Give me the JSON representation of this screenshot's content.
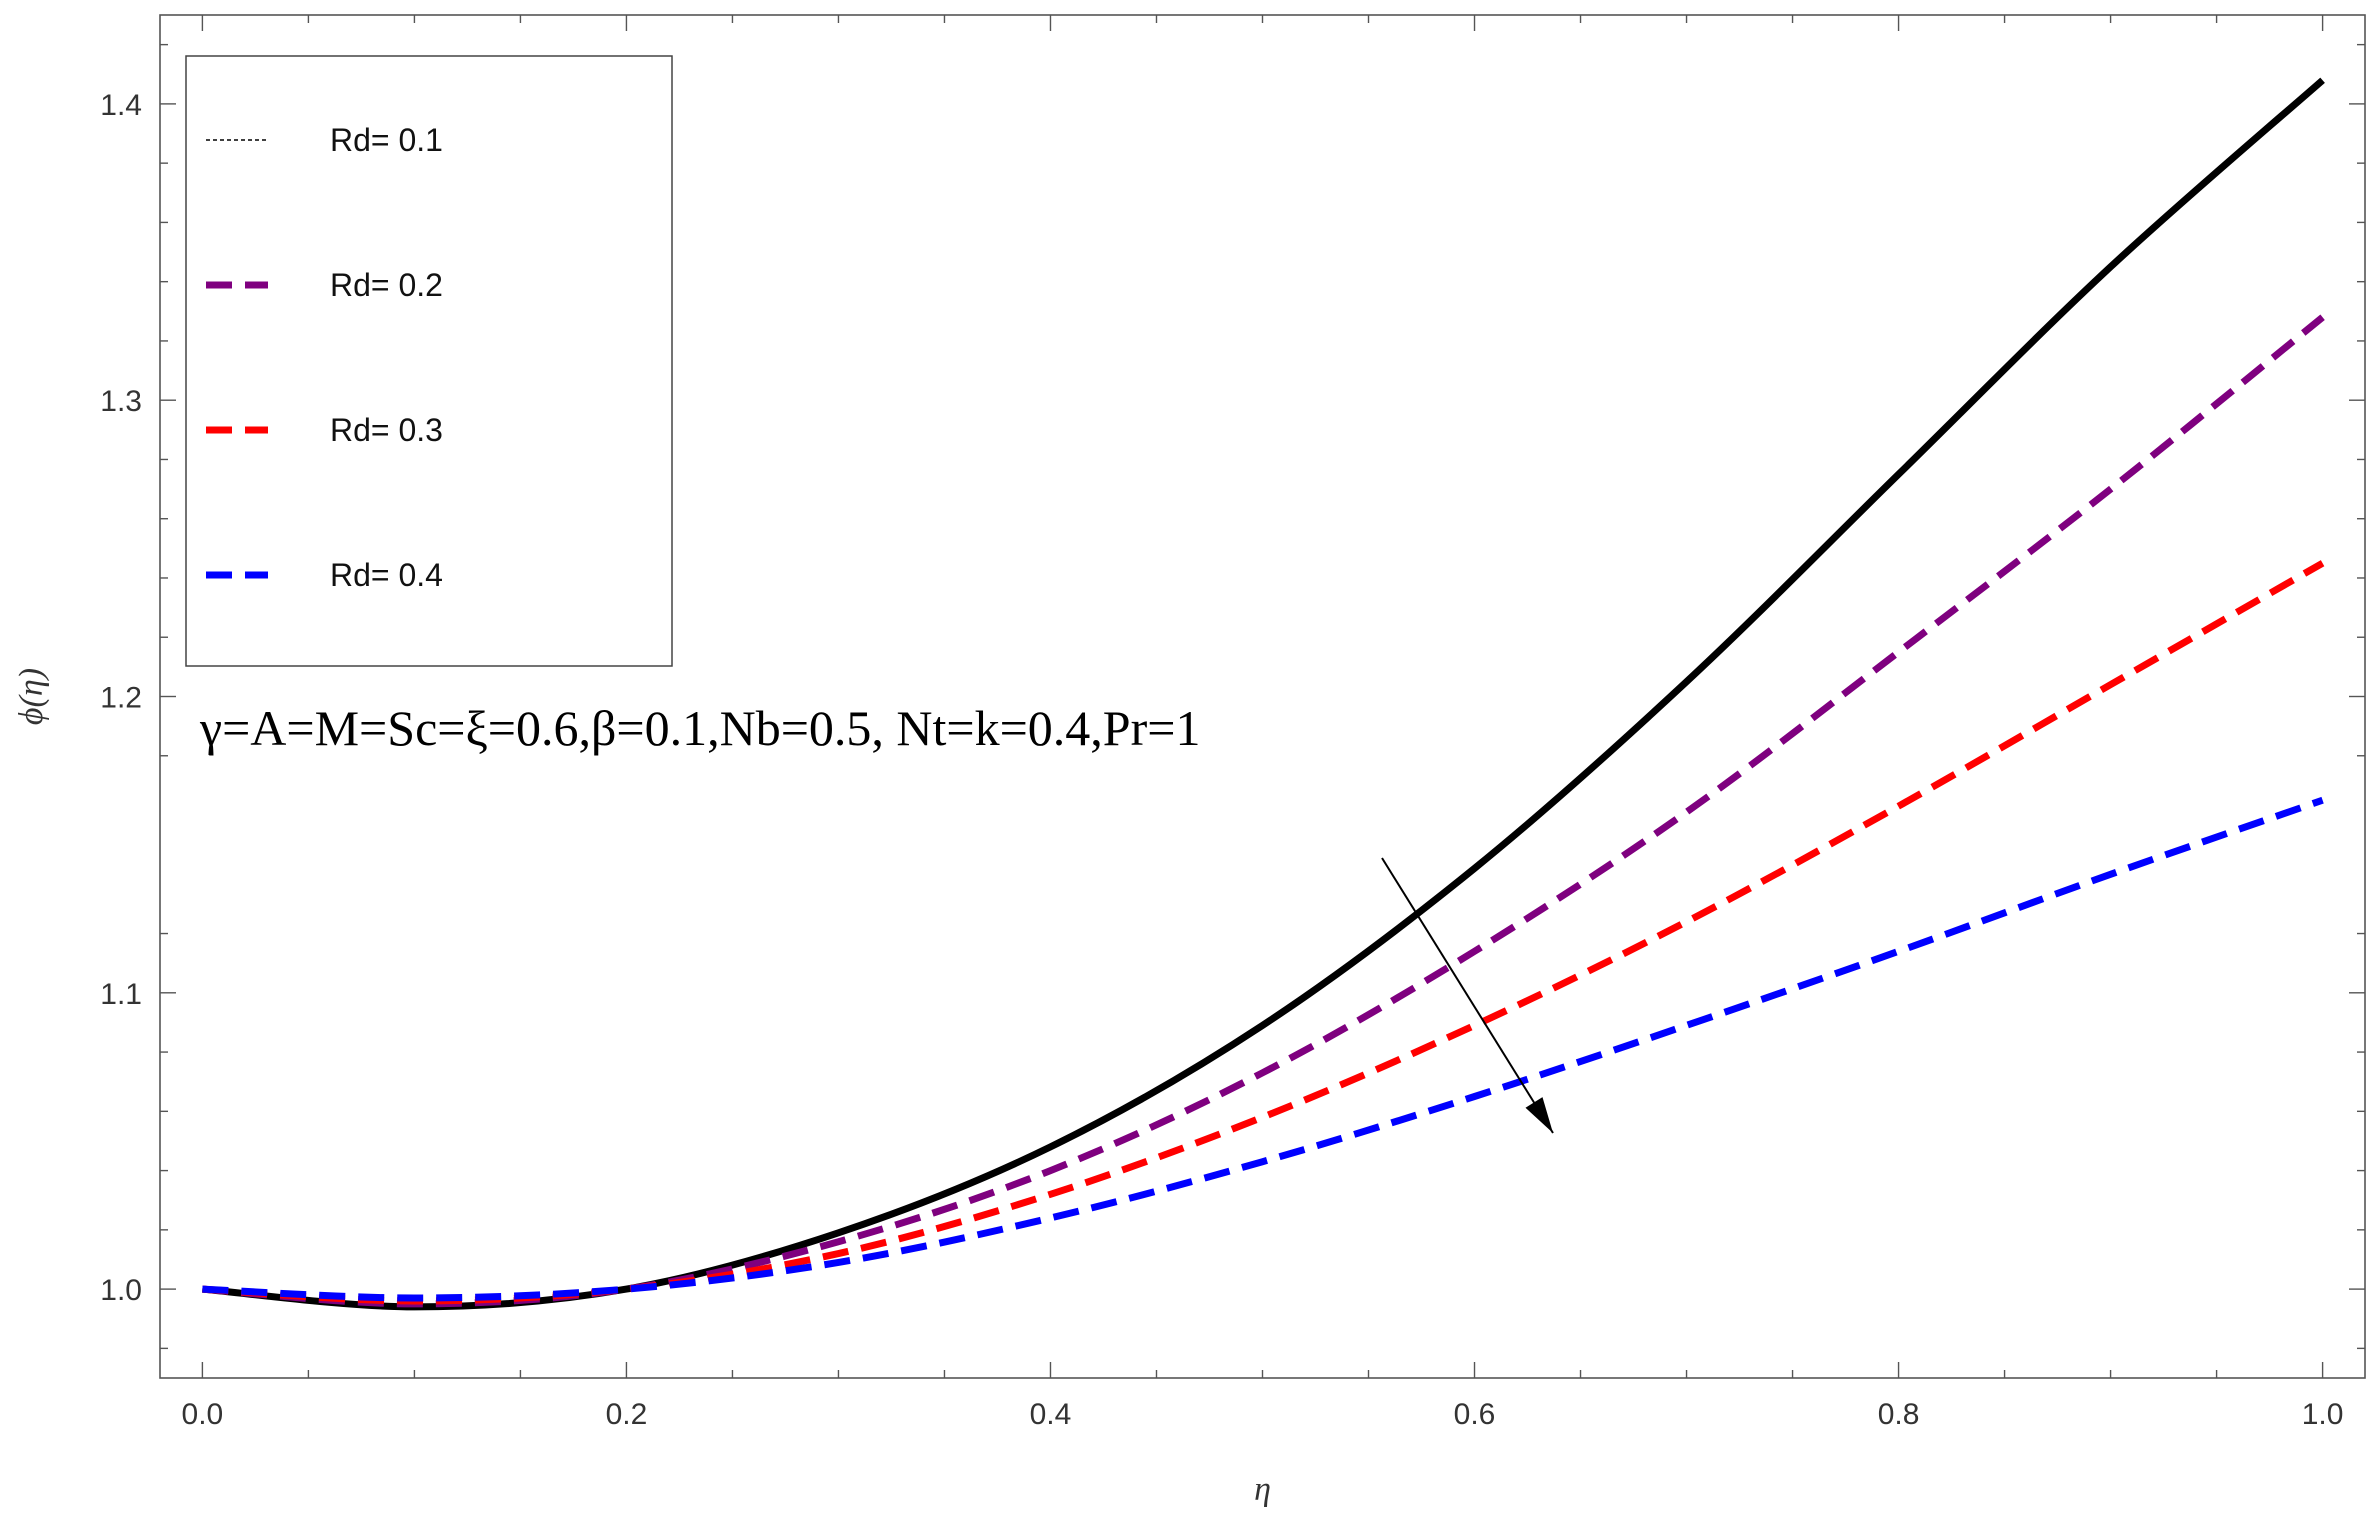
{
  "chart_data": {
    "type": "line",
    "xlabel": "η",
    "ylabel": "ϕ(η)",
    "xlim": [
      -0.02,
      1.02
    ],
    "ylim": [
      0.97,
      1.43
    ],
    "x_ticks": [
      "0.0",
      "0.2",
      "0.4",
      "0.6",
      "0.8",
      "1.0"
    ],
    "y_ticks": [
      "1.0",
      "1.1",
      "1.2",
      "1.3",
      "1.4"
    ],
    "grid": false,
    "legend_position": "top-left",
    "annotation": "γ=A=M=Sc=ξ=0.6,β=0.1,Nb=0.5, Nt=k=0.4,Pr=1",
    "arrow_note": "increasing Rd",
    "x": [
      0.0,
      0.1,
      0.2,
      0.3,
      0.4,
      0.5,
      0.6,
      0.7,
      0.8,
      0.9,
      1.0
    ],
    "series": [
      {
        "name": "Rd= 0.1",
        "color": "#000000",
        "style": "solid",
        "legend_style": "dotted-thin",
        "values": [
          1.0,
          0.994,
          1.0,
          1.019,
          1.048,
          1.089,
          1.142,
          1.205,
          1.275,
          1.345,
          1.408
        ]
      },
      {
        "name": "Rd= 0.2",
        "color": "#7f007f",
        "style": "dashed",
        "values": [
          1.0,
          0.995,
          1.0,
          1.016,
          1.04,
          1.073,
          1.114,
          1.161,
          1.215,
          1.27,
          1.328
        ]
      },
      {
        "name": "Rd= 0.3",
        "color": "#ff0000",
        "style": "dashed",
        "values": [
          1.0,
          0.996,
          1.0,
          1.012,
          1.032,
          1.058,
          1.089,
          1.124,
          1.163,
          1.204,
          1.245
        ]
      },
      {
        "name": "Rd= 0.4",
        "color": "#0000ff",
        "style": "dashed",
        "values": [
          1.0,
          0.997,
          1.0,
          1.009,
          1.024,
          1.043,
          1.065,
          1.089,
          1.114,
          1.14,
          1.165
        ]
      }
    ]
  }
}
